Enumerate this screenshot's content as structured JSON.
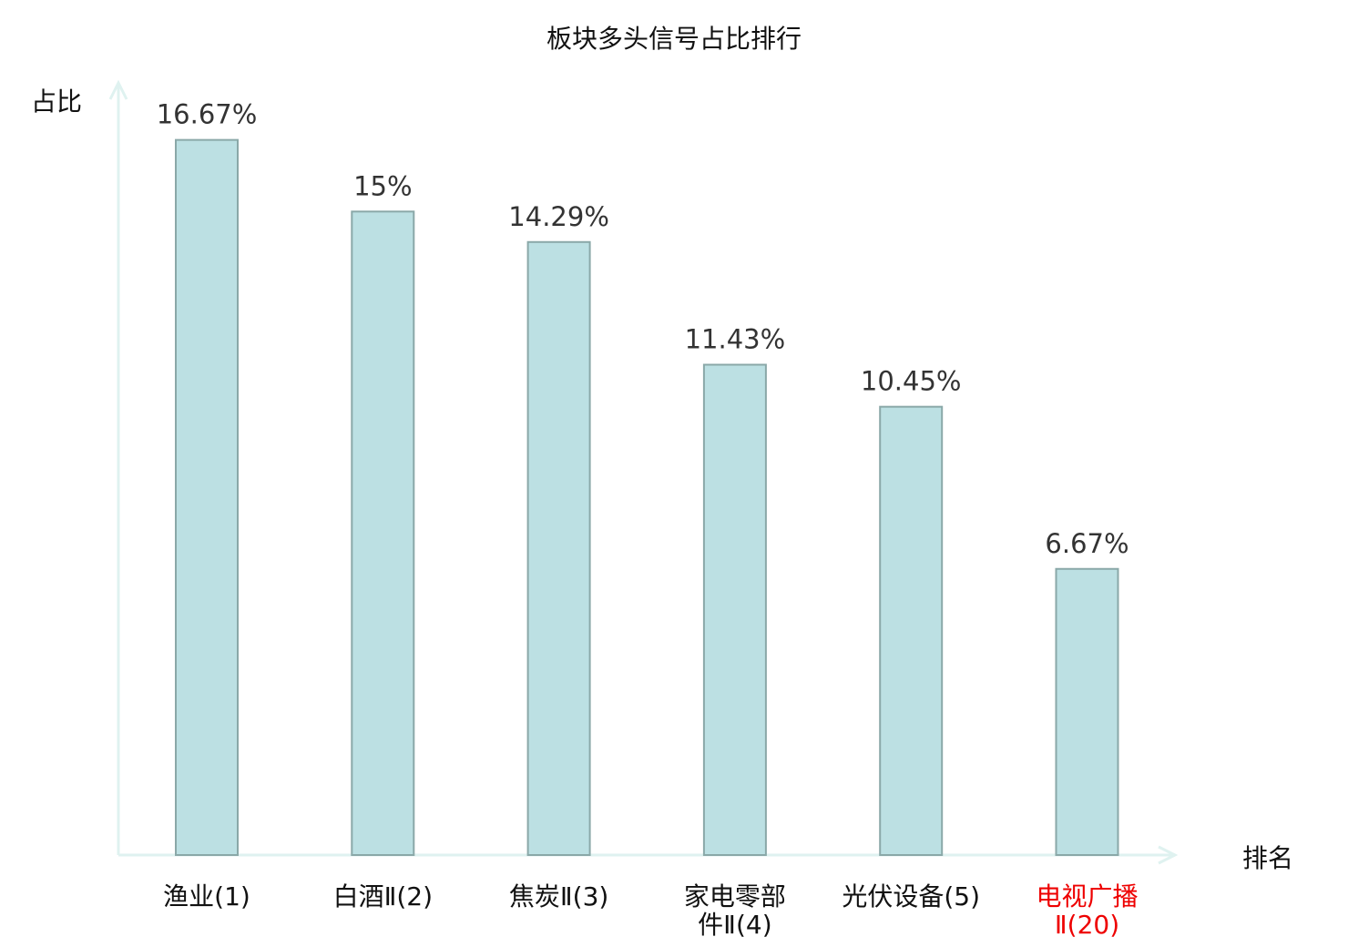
{
  "chart_data": {
    "type": "bar",
    "title": "板块多头信号占比排行",
    "xlabel": "排名",
    "ylabel": "占比",
    "ylim": [
      0,
      18
    ],
    "grid": false,
    "categories": [
      {
        "lines": [
          "渔业(1)"
        ],
        "highlight": false
      },
      {
        "lines": [
          "白酒Ⅱ(2)"
        ],
        "highlight": false
      },
      {
        "lines": [
          "焦炭Ⅱ(3)"
        ],
        "highlight": false
      },
      {
        "lines": [
          "家电零部",
          "件Ⅱ(4)"
        ],
        "highlight": false
      },
      {
        "lines": [
          "光伏设备(5)"
        ],
        "highlight": false
      },
      {
        "lines": [
          "电视广播",
          "Ⅱ(20)"
        ],
        "highlight": true
      }
    ],
    "values": [
      16.67,
      15,
      14.29,
      11.43,
      10.45,
      6.67
    ],
    "labels": [
      "16.67%",
      "15%",
      "14.29%",
      "11.43%",
      "10.45%",
      "6.67%"
    ],
    "colors": {
      "bar": "#bce0e3",
      "bar_edge": "#8aa8a8",
      "axis": "#dff2f0",
      "highlight": "#ee0000",
      "text": "#111111"
    }
  }
}
